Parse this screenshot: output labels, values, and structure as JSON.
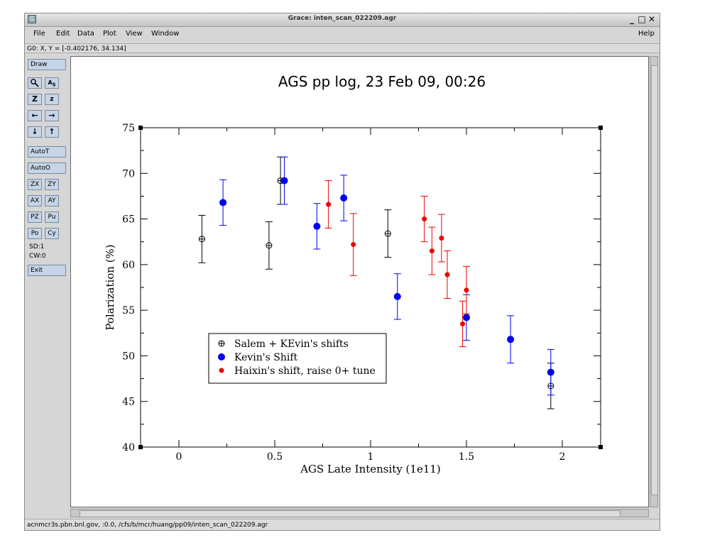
{
  "window": {
    "title": "Grace: inten_scan_022209.agr",
    "controls": {
      "minimize": "_",
      "maximize": "□",
      "close": "✕"
    }
  },
  "menubar": {
    "items": [
      "File",
      "Edit",
      "Data",
      "Plot",
      "View",
      "Window"
    ],
    "help": "Help"
  },
  "locator": "G0: X, Y = [-0.402176, 34.134]",
  "toolbar": {
    "draw": "Draw",
    "zoom_icons": [
      "zoom-icon",
      "autoscale-text-icon"
    ],
    "row2": [
      "Z",
      "z"
    ],
    "row3": [
      "←",
      "→"
    ],
    "row4": [
      "↓",
      "↑"
    ],
    "autot": "AutoT",
    "autoo": "AutoO",
    "pairs": [
      [
        "ZX",
        "ZY"
      ],
      [
        "AX",
        "AY"
      ],
      [
        "PZ",
        "Pu"
      ],
      [
        "Po",
        "Cy"
      ]
    ],
    "sd": "SD:1",
    "cw": "CW:0",
    "exit": "Exit"
  },
  "statusbar": "acnmcr3s.pbn.bnl.gov, :0.0, /cfs/b/mcr/huang/pp09/inten_scan_022209.agr",
  "chart_data": {
    "type": "scatter",
    "title": "AGS pp log, 23 Feb 09, 00:26",
    "xlabel": "AGS Late Intensity (1e11)",
    "ylabel": "Polarization (%)",
    "xlim": [
      -0.2,
      2.2
    ],
    "ylim": [
      40,
      75
    ],
    "xticks": [
      "0",
      "0.5",
      "1",
      "1.5",
      "2"
    ],
    "yticks": [
      "40",
      "45",
      "50",
      "55",
      "60",
      "65",
      "70",
      "75"
    ],
    "legend_position": "bottom-left",
    "series": [
      {
        "name": "Salem + KEvin's shifts",
        "color": "#000000",
        "marker": "crossed-circle",
        "points": [
          {
            "x": 0.12,
            "y": 62.8,
            "err": 2.6
          },
          {
            "x": 0.47,
            "y": 62.1,
            "err": 2.6
          },
          {
            "x": 0.53,
            "y": 69.2,
            "err": 2.6
          },
          {
            "x": 1.09,
            "y": 63.4,
            "err": 2.6
          },
          {
            "x": 1.94,
            "y": 46.7,
            "err": 2.5
          }
        ]
      },
      {
        "name": "Kevin's Shift",
        "color": "#0000ee",
        "marker": "filled-circle",
        "points": [
          {
            "x": 0.23,
            "y": 66.8,
            "err": 2.5
          },
          {
            "x": 0.55,
            "y": 69.2,
            "err": 2.6
          },
          {
            "x": 0.72,
            "y": 64.2,
            "err": 2.5
          },
          {
            "x": 0.86,
            "y": 67.3,
            "err": 2.5
          },
          {
            "x": 1.14,
            "y": 56.5,
            "err": 2.5
          },
          {
            "x": 1.5,
            "y": 54.2,
            "err": 2.5
          },
          {
            "x": 1.73,
            "y": 51.8,
            "err": 2.6
          },
          {
            "x": 1.94,
            "y": 48.2,
            "err": 2.5
          }
        ]
      },
      {
        "name": "Haixin's shift, raise 0+ tune",
        "color": "#ee0000",
        "marker": "small-filled-circle",
        "points": [
          {
            "x": 0.78,
            "y": 66.6,
            "err": 2.6
          },
          {
            "x": 0.91,
            "y": 62.2,
            "err": 3.4
          },
          {
            "x": 1.28,
            "y": 65.0,
            "err": 2.5
          },
          {
            "x": 1.32,
            "y": 61.5,
            "err": 2.6
          },
          {
            "x": 1.37,
            "y": 62.9,
            "err": 2.6
          },
          {
            "x": 1.4,
            "y": 58.9,
            "err": 2.6
          },
          {
            "x": 1.48,
            "y": 53.5,
            "err": 2.5
          },
          {
            "x": 1.5,
            "y": 57.2,
            "err": 2.6
          }
        ]
      }
    ]
  }
}
